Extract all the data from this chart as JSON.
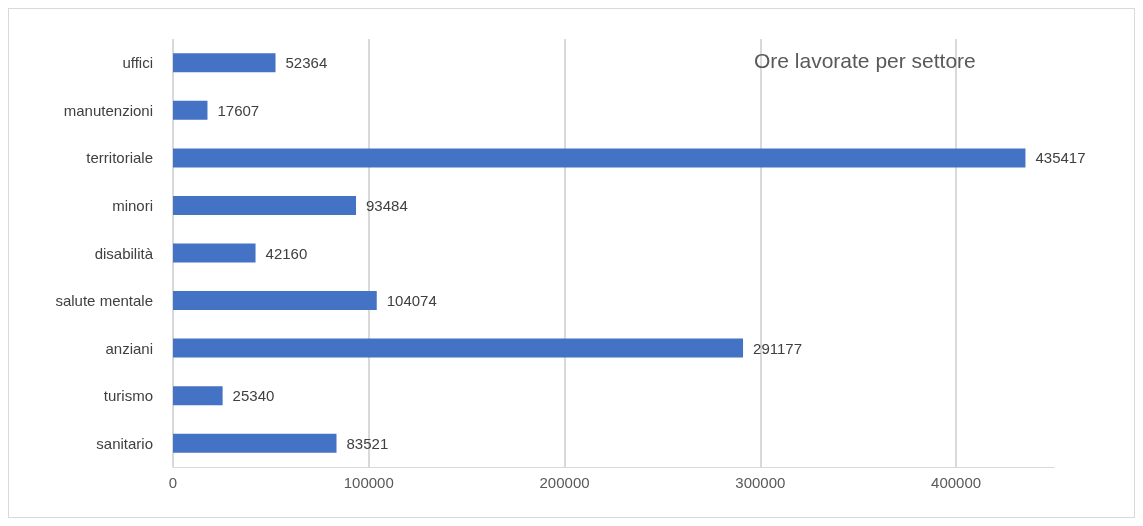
{
  "chart_data": {
    "type": "bar",
    "orientation": "horizontal",
    "title": "Ore lavorate per settore",
    "categories": [
      "uffici",
      "manutenzioni",
      "territoriale",
      "minori",
      "disabilità",
      "salute mentale",
      "anziani",
      "turismo",
      "sanitario"
    ],
    "values": [
      52364,
      17607,
      435417,
      93484,
      42160,
      104074,
      291177,
      25340,
      83521
    ],
    "color": "#4472c4",
    "xlim": [
      0,
      450000
    ],
    "xticks": [
      0,
      100000,
      200000,
      300000,
      400000
    ],
    "grid": "x",
    "data_labels": true
  }
}
